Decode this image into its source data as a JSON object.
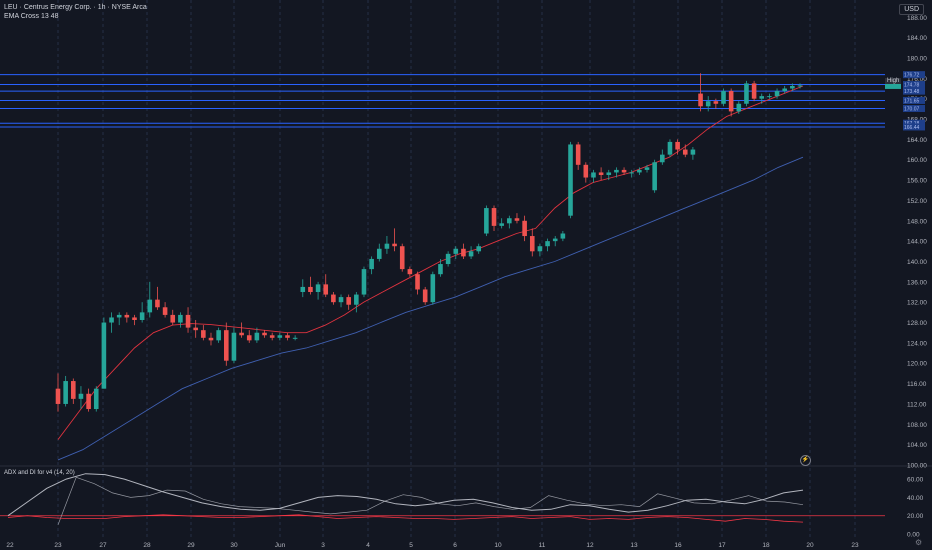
{
  "header": {
    "title": "LEU · Centrus Energy Corp. · 1h · NYSE Arca",
    "indicator": "EMA Cross 13 48",
    "adx_label": "ADX and DI for v4 (14, 20)"
  },
  "axis": {
    "currency": "USD",
    "high_label": "High",
    "gear_icon": "gear-icon",
    "replay_icon": "replay-icon"
  },
  "colors": {
    "background": "#131722",
    "up": "#26a69a",
    "down": "#ef5350",
    "ema_fast": "#e0333f",
    "ema_slow": "#3f5fb0",
    "hline": "#2962ff",
    "adx": "#b2b5be",
    "di_plus": "#9598a1",
    "di_minus": "#f23645"
  },
  "chart_data": {
    "type": "candlestick",
    "price_axis": {
      "ticks": [
        100,
        104,
        108,
        112,
        116,
        120,
        124,
        128,
        132,
        136,
        140,
        144,
        148,
        152,
        156,
        160,
        164,
        168,
        172,
        176,
        180,
        184,
        188
      ],
      "labels": [
        "100.00",
        "104.00",
        "108.00",
        "112.00",
        "116.00",
        "120.00",
        "124.00",
        "128.00",
        "132.00",
        "136.00",
        "140.00",
        "144.00",
        "148.00",
        "152.00",
        "156.00",
        "160.00",
        "164.00",
        "168.00",
        "172.00",
        "176.00",
        "180.00",
        "184.00",
        "188.00"
      ],
      "ylim": [
        100,
        191
      ]
    },
    "right_labels": [
      "176.72",
      "174.78",
      "173.48",
      "171.65",
      "170.07",
      "167.18",
      "166.44"
    ],
    "hlines": [
      176.72,
      174.78,
      173.48,
      171.65,
      170.07,
      167.18,
      166.44
    ],
    "x_labels": [
      "22",
      "23",
      "27",
      "28",
      "29",
      "30",
      "Jun",
      "3",
      "4",
      "5",
      "6",
      "10",
      "11",
      "12",
      "13",
      "16",
      "17",
      "18",
      "20",
      "23"
    ],
    "candles": [
      [
        115,
        118,
        110.5,
        112.0
      ],
      [
        112.0,
        117.5,
        111.5,
        116.5
      ],
      [
        116.5,
        117.0,
        112.0,
        113.0
      ],
      [
        113.0,
        115.5,
        111.0,
        114.0
      ],
      [
        114.0,
        115.0,
        110.5,
        111.0
      ],
      [
        111.0,
        115.5,
        110.5,
        115.0
      ],
      [
        115.0,
        129.0,
        115.0,
        128.0
      ],
      [
        128.0,
        130.0,
        126.0,
        129.0
      ],
      [
        129.0,
        130.0,
        127.5,
        129.5
      ],
      [
        129.5,
        130.0,
        128.0,
        129.0
      ],
      [
        129.0,
        129.5,
        127.5,
        128.5
      ],
      [
        128.5,
        132.0,
        128.0,
        130.0
      ],
      [
        130.0,
        136.0,
        129.0,
        132.5
      ],
      [
        132.5,
        135.0,
        130.5,
        131.0
      ],
      [
        131.0,
        132.0,
        129.0,
        129.5
      ],
      [
        129.5,
        130.5,
        127.5,
        128.0
      ],
      [
        128.0,
        130.0,
        127.0,
        129.5
      ],
      [
        129.5,
        131.0,
        126.0,
        127.0
      ],
      [
        127.0,
        128.5,
        125.0,
        126.5
      ],
      [
        126.5,
        127.5,
        124.5,
        125.0
      ],
      [
        125.0,
        126.0,
        123.5,
        124.5
      ],
      [
        124.5,
        127.0,
        124.0,
        126.5
      ],
      [
        126.5,
        128.0,
        119.5,
        120.5
      ],
      [
        120.5,
        127.0,
        120.0,
        126.0
      ],
      [
        126.0,
        128.0,
        125.0,
        125.5
      ],
      [
        125.5,
        126.5,
        124.0,
        124.5
      ],
      [
        124.5,
        127.0,
        124.0,
        126.0
      ],
      [
        126.0,
        126.5,
        125.0,
        125.5
      ],
      [
        125.5,
        126.0,
        124.5,
        125.0
      ],
      [
        125.0,
        126.0,
        124.5,
        125.5
      ],
      [
        125.5,
        126.0,
        124.5,
        125.0
      ],
      [
        125.0,
        125.5,
        124.5,
        125.0
      ],
      [
        134.0,
        136.5,
        133.0,
        135.0
      ],
      [
        135.0,
        137.0,
        133.5,
        134.0
      ],
      [
        134.0,
        136.0,
        132.5,
        135.5
      ],
      [
        135.5,
        137.5,
        133.0,
        133.5
      ],
      [
        133.5,
        134.0,
        131.5,
        132.0
      ],
      [
        132.0,
        133.5,
        131.0,
        133.0
      ],
      [
        133.0,
        133.5,
        130.5,
        131.5
      ],
      [
        131.5,
        134.0,
        130.0,
        133.5
      ],
      [
        133.5,
        139.0,
        133.0,
        138.5
      ],
      [
        138.5,
        141.0,
        137.5,
        140.5
      ],
      [
        140.5,
        143.5,
        140.0,
        142.5
      ],
      [
        142.5,
        145.0,
        141.5,
        143.5
      ],
      [
        143.5,
        146.5,
        142.0,
        143.0
      ],
      [
        143.0,
        143.5,
        138.0,
        138.5
      ],
      [
        138.5,
        139.0,
        137.0,
        137.5
      ],
      [
        137.5,
        138.0,
        133.5,
        134.5
      ],
      [
        134.5,
        135.0,
        131.5,
        132.0
      ],
      [
        132.0,
        138.0,
        131.5,
        137.5
      ],
      [
        137.5,
        140.5,
        137.0,
        139.5
      ],
      [
        139.5,
        142.0,
        139.0,
        141.5
      ],
      [
        141.5,
        143.0,
        140.5,
        142.5
      ],
      [
        142.5,
        143.5,
        140.5,
        141.0
      ],
      [
        141.0,
        143.0,
        140.5,
        142.0
      ],
      [
        142.0,
        143.5,
        141.5,
        143.0
      ],
      [
        145.5,
        151.0,
        145.0,
        150.5
      ],
      [
        150.5,
        151.0,
        146.0,
        147.0
      ],
      [
        147.0,
        148.5,
        146.5,
        147.5
      ],
      [
        147.5,
        149.0,
        146.5,
        148.5
      ],
      [
        148.5,
        149.5,
        147.5,
        148.0
      ],
      [
        148.0,
        149.0,
        144.0,
        145.0
      ],
      [
        145.0,
        146.5,
        141.0,
        142.0
      ],
      [
        142.0,
        143.5,
        141.0,
        143.0
      ],
      [
        143.0,
        144.5,
        142.0,
        144.0
      ],
      [
        144.0,
        145.0,
        143.0,
        144.5
      ],
      [
        144.5,
        146.0,
        144.0,
        145.5
      ],
      [
        149.0,
        163.5,
        148.5,
        163.0
      ],
      [
        163.0,
        163.5,
        158.0,
        159.0
      ],
      [
        159.0,
        159.5,
        155.5,
        156.5
      ],
      [
        156.5,
        158.0,
        155.5,
        157.5
      ],
      [
        157.5,
        158.5,
        156.0,
        157.0
      ],
      [
        157.0,
        158.0,
        156.0,
        157.5
      ],
      [
        157.5,
        158.5,
        156.5,
        158.0
      ],
      [
        158.0,
        158.5,
        157.0,
        157.5
      ],
      [
        157.5,
        158.0,
        156.5,
        157.5
      ],
      [
        157.5,
        158.5,
        157.0,
        158.0
      ],
      [
        158.0,
        159.0,
        157.5,
        158.5
      ],
      [
        154.0,
        160.0,
        153.5,
        159.5
      ],
      [
        159.5,
        162.0,
        159.0,
        161.0
      ],
      [
        161.0,
        164.0,
        160.5,
        163.5
      ],
      [
        163.5,
        164.0,
        161.0,
        162.0
      ],
      [
        162.0,
        163.0,
        160.5,
        161.0
      ],
      [
        161.0,
        162.5,
        160.0,
        162.0
      ],
      [
        173.0,
        177.0,
        169.5,
        170.5
      ],
      [
        170.5,
        172.5,
        169.5,
        171.5
      ],
      [
        171.5,
        172.0,
        170.0,
        171.0
      ],
      [
        171.0,
        174.0,
        170.5,
        173.5
      ],
      [
        173.5,
        174.0,
        168.5,
        169.5
      ],
      [
        169.5,
        171.5,
        169.0,
        171.0
      ],
      [
        171.0,
        175.5,
        170.5,
        175.0
      ],
      [
        175.0,
        175.5,
        171.5,
        172.0
      ],
      [
        172.0,
        173.0,
        171.0,
        172.5
      ],
      [
        172.5,
        173.0,
        172.0,
        172.5
      ],
      [
        172.5,
        174.0,
        172.0,
        173.5
      ],
      [
        173.5,
        174.5,
        173.0,
        174.0
      ],
      [
        174.0,
        175.0,
        173.5,
        174.5
      ],
      [
        174.5,
        175.0,
        174.0,
        174.6
      ]
    ],
    "ema_fast": [
      105,
      110,
      115,
      119,
      123,
      126,
      127.5,
      127.8,
      127.6,
      127.2,
      126.8,
      126.4,
      126.0,
      126.0,
      127.5,
      129.5,
      132.0,
      134.0,
      136.0,
      138.0,
      140.0,
      141.5,
      142.5,
      144.0,
      145.5,
      146.5,
      150.5,
      153.5,
      155.5,
      156.5,
      157.5,
      159.0,
      160.5,
      163.0,
      166.0,
      168.5,
      170.0,
      171.5,
      173.0,
      174.5
    ],
    "ema_slow": [
      101,
      103,
      106,
      109,
      112,
      115,
      117,
      119,
      120.5,
      122,
      123,
      124.5,
      126,
      128,
      130,
      131.5,
      133,
      135,
      137,
      138.5,
      140,
      142,
      144,
      146,
      148,
      150,
      152,
      154,
      156,
      158.5,
      160.5
    ],
    "adx_axis": {
      "labels": [
        "60.00",
        "40.00",
        "20.00",
        "0.00"
      ],
      "ticks": [
        60,
        40,
        20,
        0
      ],
      "ylim": [
        0,
        70
      ],
      "threshold": 20
    },
    "adx": [
      20,
      35,
      50,
      60,
      66,
      65,
      60,
      53,
      46,
      40,
      34,
      30,
      27,
      26,
      28,
      34,
      40,
      42,
      41,
      38,
      33,
      31,
      33,
      37,
      38,
      34,
      29,
      26,
      27,
      32,
      31,
      27,
      24,
      26,
      31,
      37,
      38,
      35,
      33,
      38,
      45,
      48
    ],
    "di_plus": [
      10,
      62,
      55,
      45,
      40,
      42,
      48,
      47,
      38,
      33,
      30,
      29,
      28,
      26,
      24,
      22,
      24,
      26,
      36,
      43,
      40,
      33,
      31,
      34,
      30,
      27,
      29,
      42,
      37,
      33,
      31,
      32,
      30,
      44,
      39,
      34,
      33,
      37,
      42,
      36,
      35,
      32
    ],
    "di_minus": [
      18,
      20,
      18,
      17,
      17,
      17,
      19,
      20,
      21,
      20,
      19,
      18,
      18,
      19,
      20,
      21,
      19,
      17,
      18,
      19,
      18,
      17,
      17,
      16,
      17,
      18,
      19,
      17,
      18,
      19,
      16,
      17,
      16,
      18,
      19,
      18,
      16,
      14,
      17,
      16,
      14,
      13
    ]
  }
}
